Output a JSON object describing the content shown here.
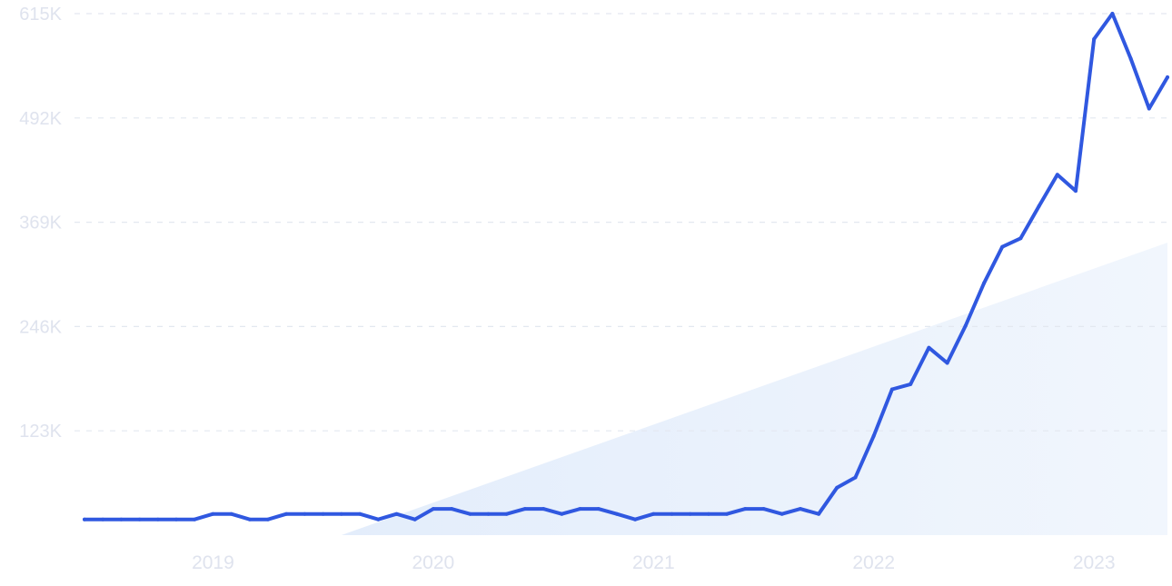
{
  "chart_data": {
    "type": "line",
    "title": "",
    "xlabel": "",
    "ylabel": "",
    "y_ticks": [
      "615K",
      "492K",
      "369K",
      "246K",
      "123K"
    ],
    "y_tick_values": [
      615000,
      492000,
      369000,
      246000,
      123000
    ],
    "x_ticks": [
      "2019",
      "2020",
      "2021",
      "2022",
      "2023"
    ],
    "x_tick_values": [
      "2019-01",
      "2020-01",
      "2021-01",
      "2022-01",
      "2023-01"
    ],
    "xlim": [
      "2018-06",
      "2023-05"
    ],
    "ylim": [
      0,
      615000
    ],
    "grid": true,
    "grid_style": "dashed",
    "legend": "none",
    "colors": {
      "line": "#3058e0",
      "trend_fill": "#e6effc",
      "grid": "#e3e8f0",
      "tick_text": "#dfe3ee"
    },
    "trend": {
      "x": [
        "2019-08",
        "2023-05"
      ],
      "y": [
        0,
        345000
      ]
    },
    "series": [
      {
        "x": [
          "2018-06",
          "2018-07",
          "2018-08",
          "2018-09",
          "2018-10",
          "2018-11",
          "2018-12",
          "2019-01",
          "2019-02",
          "2019-03",
          "2019-04",
          "2019-05",
          "2019-06",
          "2019-07",
          "2019-08",
          "2019-09",
          "2019-10",
          "2019-11",
          "2019-12",
          "2020-01",
          "2020-02",
          "2020-03",
          "2020-04",
          "2020-05",
          "2020-06",
          "2020-07",
          "2020-08",
          "2020-09",
          "2020-10",
          "2020-11",
          "2020-12",
          "2021-01",
          "2021-02",
          "2021-03",
          "2021-04",
          "2021-05",
          "2021-06",
          "2021-07",
          "2021-08",
          "2021-09",
          "2021-10",
          "2021-11",
          "2021-12",
          "2022-01",
          "2022-02",
          "2022-03",
          "2022-04",
          "2022-05",
          "2022-06",
          "2022-07",
          "2022-08",
          "2022-09",
          "2022-10",
          "2022-11",
          "2022-12",
          "2023-01",
          "2023-02",
          "2023-03",
          "2023-04",
          "2023-05"
        ],
        "values": [
          18500,
          18500,
          18500,
          18500,
          18500,
          18500,
          18500,
          25000,
          25000,
          18500,
          18500,
          25000,
          25000,
          25000,
          25000,
          25000,
          18500,
          25000,
          18500,
          31000,
          31000,
          25000,
          25000,
          25000,
          31000,
          31000,
          25000,
          31000,
          31000,
          25000,
          18500,
          25000,
          25000,
          25000,
          25000,
          25000,
          31000,
          31000,
          25000,
          31000,
          25000,
          56000,
          68000,
          117000,
          172000,
          178000,
          221000,
          203000,
          247000,
          297000,
          340000,
          350000,
          388000,
          425000,
          406000,
          585000,
          615000,
          562000,
          503000,
          540000
        ]
      }
    ]
  }
}
